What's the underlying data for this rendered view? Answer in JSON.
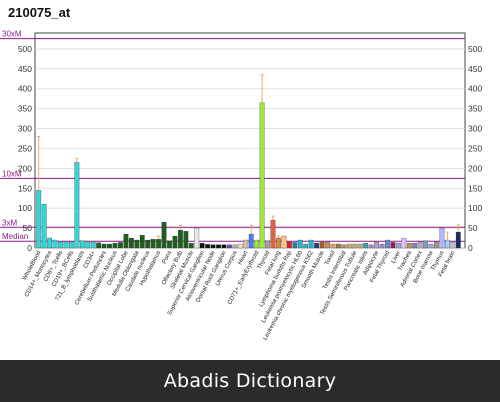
{
  "footer": {
    "caption": "Abadis Dictionary"
  },
  "colors": {
    "reference_line": "#8b1a8b",
    "error_bar": "#e8a060",
    "background": "#ffffff",
    "footer_bg": "#2b2b2b"
  },
  "chart_data": {
    "type": "bar",
    "title": "210075_at",
    "y_ticks": [
      0,
      50,
      100,
      150,
      200,
      250,
      300,
      350,
      400,
      450,
      500
    ],
    "ylim": [
      0,
      540
    ],
    "grid": true,
    "reference_lines": [
      {
        "label": "30xM",
        "value": 526
      },
      {
        "label": "10xM",
        "value": 175
      },
      {
        "label": "3xM",
        "value": 52
      },
      {
        "label": "Median",
        "value": 17
      }
    ],
    "categories": [
      "WholeBlood",
      "CD33+_Myeloid",
      "CD14+_Monocytes",
      "CD4+_Tcells",
      "CD8+_Tcells",
      "CD56+_NKCells",
      "CD19+_BCells",
      "BDCA4+_DentriticCells",
      "721_B_lymphoblasts",
      "CD105+_Endothelial",
      "CD34+",
      "Cerebellum",
      "Cerebellum Peduncles",
      "Globus Pallidus",
      "Subthalamic Nucleus",
      "Amygdala",
      "Occipital Lobe",
      "Cingulate Cortex",
      "Medulla Oblongata",
      "Parietal Lobe",
      "Caudate nucleus",
      "Thalamus",
      "Hypothalamus",
      "Prefrontal Cortex",
      "Pons",
      "Whole Brain",
      "Olfactory Bulb",
      "Spinal cord",
      "Skeletal Muscle",
      "Tongue",
      "Superior Cervical Ganglion",
      "Trigeminal Ganglion",
      "Atrioventricular Node",
      "Ciliary Ganglion",
      "Dorsal Root Ganglion",
      "Appendix",
      "Uterus Corpus",
      "Uterus",
      "Heart",
      "Cardiac Myocytes",
      "CD71+_EarlyErythroid",
      "Placenta",
      "Thyroid",
      "Lung",
      "Fetal lung",
      "Prostate",
      "Lymphoma burkitts Raji",
      "Lymphoma burkitts Daudi",
      "Leukemia promyelocytic HL60",
      "Leukemia lymphoblastic MOLT4",
      "Leukemia chronic myelogenous K562",
      "Colorectal adenocarcinoma",
      "Smooth Muscle",
      "Bronchial Epithelial Cells",
      "Tonsil",
      "Testis Germ Cell",
      "Testis Interstitial",
      "Testis Leydig Cell",
      "Testis Seminiferous Tubule",
      "Testis",
      "Pancreatic Islets",
      "Pancreas",
      "Adipocyte",
      "Skin",
      "Fetal Thyroid",
      "Fetal liver",
      "Liver",
      "Salivary gland",
      "Trachea",
      "Olfactory Mucosa",
      "Adrenal Cortex",
      "Adrenal gland",
      "Bone marrow",
      "Lymph node",
      "Thymus",
      "Kidney",
      "Fetal brain",
      "Ovary"
    ],
    "values": [
      145,
      110,
      25,
      20,
      15,
      15,
      15,
      215,
      18,
      14,
      15,
      13,
      10,
      10,
      12,
      14,
      35,
      25,
      20,
      32,
      20,
      22,
      22,
      65,
      18,
      30,
      45,
      42,
      12,
      50,
      12,
      9,
      8,
      8,
      8,
      8,
      8,
      10,
      20,
      35,
      20,
      365,
      18,
      70,
      25,
      30,
      15,
      14,
      20,
      10,
      20,
      12,
      15,
      15,
      10,
      10,
      8,
      10,
      10,
      10,
      12,
      8,
      15,
      10,
      20,
      14,
      12,
      25,
      12,
      12,
      15,
      18,
      10,
      15,
      50,
      20,
      15,
      40
    ],
    "errors": {
      "0": 135,
      "7": 10,
      "22": 8,
      "26": 12,
      "39": 22,
      "41": 70,
      "43": 10,
      "44": 5,
      "75": 20,
      "77": 18
    },
    "bar_colors": [
      "#33d6d6",
      "#33d6d6",
      "#33d6d6",
      "#33d6d6",
      "#33d6d6",
      "#33d6d6",
      "#33d6d6",
      "#33d6d6",
      "#33d6d6",
      "#33d6d6",
      "#33d6d6",
      "#1e5e1e",
      "#1e5e1e",
      "#1e5e1e",
      "#1e5e1e",
      "#1e5e1e",
      "#1e5e1e",
      "#1e5e1e",
      "#1e5e1e",
      "#1e5e1e",
      "#1e5e1e",
      "#1e5e1e",
      "#1e5e1e",
      "#1e5e1e",
      "#1e5e1e",
      "#1e5e1e",
      "#1e5e1e",
      "#1e5e1e",
      "#1e5e1e",
      "#e8e8e8",
      "#111111",
      "#111111",
      "#111111",
      "#111111",
      "#111111",
      "#7b3fbf",
      "#b0b0b0",
      "#ffd9c0",
      "#d4c2a0",
      "#4c7aff",
      "#9ee83a",
      "#9ee83a",
      "#a0a0a0",
      "#e06040",
      "#d48a40",
      "#ffc080",
      "#e02020",
      "#2080b0",
      "#2bb5c4",
      "#2bb5c4",
      "#2bb5c4",
      "#203a8a",
      "#b05a20",
      "#c09060",
      "#e0a060",
      "#a07850",
      "#b09070",
      "#d0b070",
      "#c8a878",
      "#c8a878",
      "#3f9fb0",
      "#9e8ac0",
      "#b0a0d0",
      "#a08ac8",
      "#6a88c8",
      "#8a2060",
      "#a4a4d4",
      "#e0c0ff",
      "#c09050",
      "#8080c0",
      "#b0b0b0",
      "#7c9cc0",
      "#9aa4e0",
      "#a49488",
      "#b4b4ff",
      "#a0d0ff",
      "#c0c0c0",
      "#1a2a6a"
    ]
  }
}
